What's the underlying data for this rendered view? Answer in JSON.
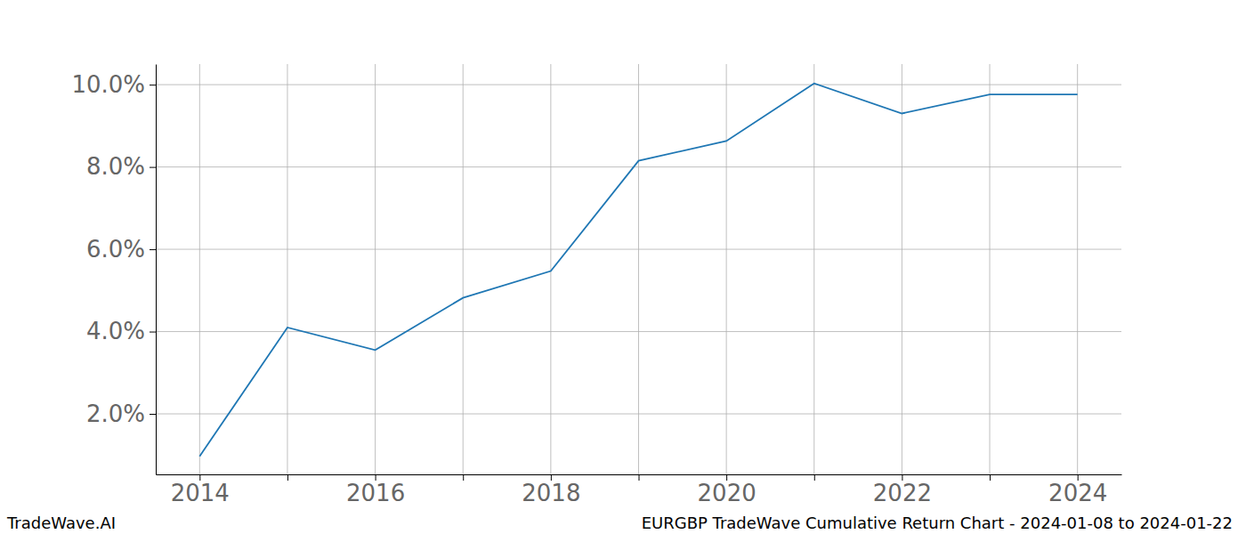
{
  "chart_data": {
    "type": "line",
    "title": "EURGBP TradeWave Cumulative Return Chart - 2024-01-08 to 2024-01-22",
    "annotations": [
      "TradeWave.AI"
    ],
    "categories": [
      "2014",
      null,
      "2016",
      null,
      "2018",
      null,
      "2020",
      null,
      "2022",
      null,
      "2024"
    ],
    "values": [
      0.97,
      4.1,
      3.55,
      4.82,
      5.47,
      8.15,
      8.63,
      10.03,
      9.3,
      9.76,
      9.76
    ],
    "color": "#1f77b4",
    "ylim": [
      0.53,
      10.5
    ],
    "yticks": [
      {
        "value": 2,
        "label": "2.0%"
      },
      {
        "value": 4,
        "label": "4.0%"
      },
      {
        "value": 6,
        "label": "6.0%"
      },
      {
        "value": 8,
        "label": "8.0%"
      },
      {
        "value": 10,
        "label": "10.0%"
      }
    ],
    "grid": true
  }
}
